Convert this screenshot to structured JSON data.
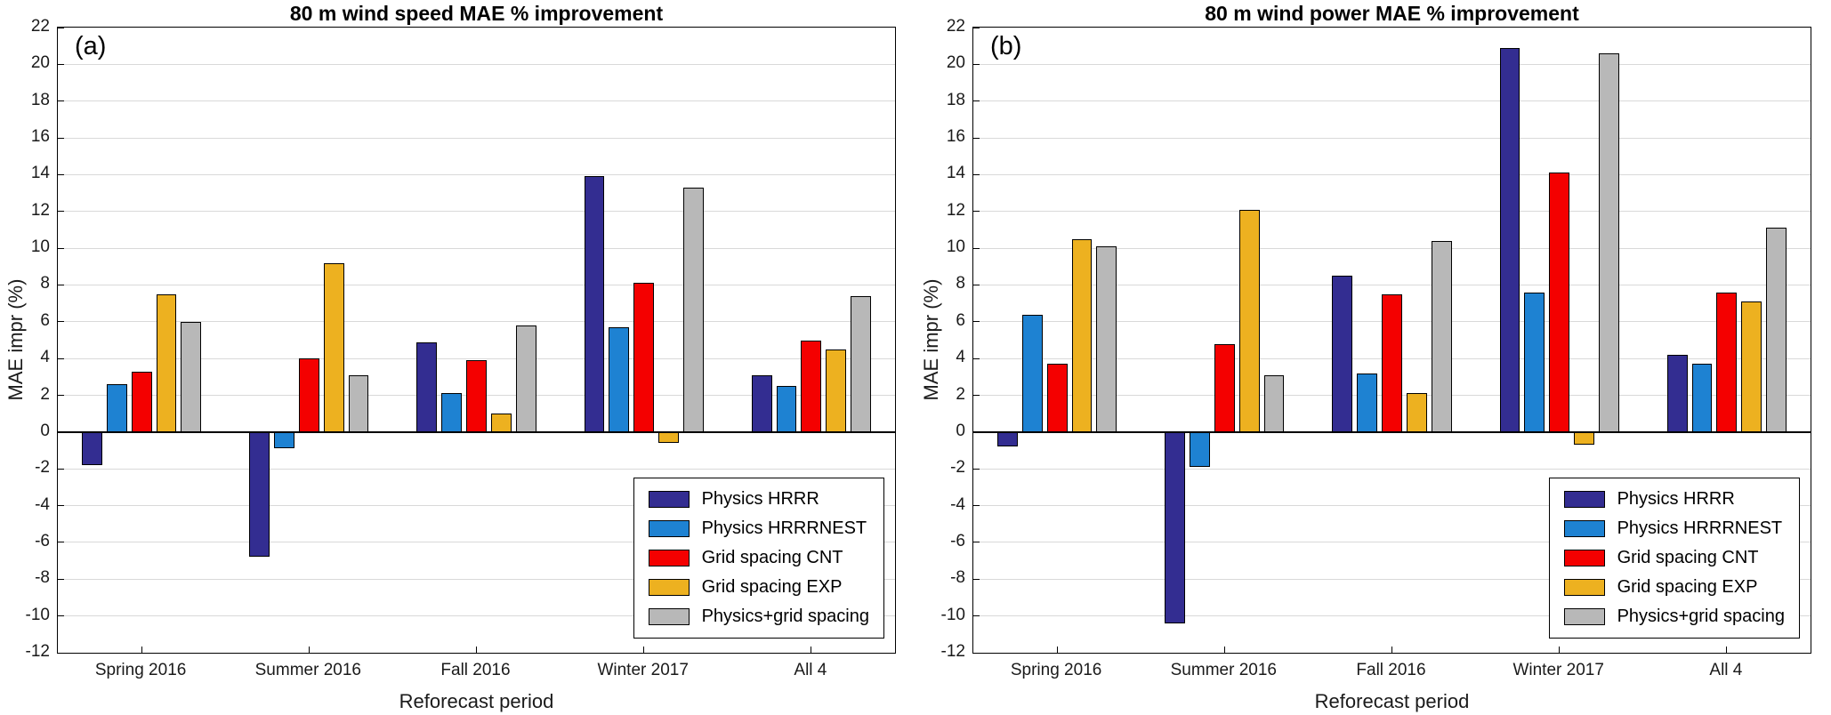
{
  "figure": {
    "background": "#ffffff",
    "gridline_color": "#d9d9d9",
    "axis_color": "#000000",
    "bar_border_color": "#000000"
  },
  "chart_data": [
    {
      "type": "bar",
      "panel_label": "(a)",
      "title": "80 m wind speed MAE % improvement",
      "xlabel": "Reforecast period",
      "ylabel": "MAE impr (%)",
      "ylim": [
        -12,
        22
      ],
      "ytick_step": 2,
      "grid": true,
      "legend_position": "lower right",
      "categories": [
        "Spring 2016",
        "Summer 2016",
        "Fall 2016",
        "Winter 2017",
        "All 4"
      ],
      "series": [
        {
          "name": "Physics HRRR",
          "color": "#332d91",
          "values": [
            -1.8,
            -6.8,
            4.9,
            13.9,
            3.1
          ]
        },
        {
          "name": "Physics HRRRNEST",
          "color": "#1e82d2",
          "values": [
            2.6,
            -0.9,
            2.1,
            5.7,
            2.5
          ]
        },
        {
          "name": "Grid spacing CNT",
          "color": "#f40000",
          "values": [
            3.3,
            4.0,
            3.9,
            8.1,
            5.0
          ]
        },
        {
          "name": "Grid spacing EXP",
          "color": "#edb120",
          "values": [
            7.5,
            9.2,
            1.0,
            -0.6,
            4.5
          ]
        },
        {
          "name": "Physics+grid spacing",
          "color": "#b8b8b8",
          "values": [
            6.0,
            3.1,
            5.8,
            13.3,
            7.4
          ]
        }
      ]
    },
    {
      "type": "bar",
      "panel_label": "(b)",
      "title": "80 m wind power MAE % improvement",
      "xlabel": "Reforecast period",
      "ylabel": "MAE impr (%)",
      "ylim": [
        -12,
        22
      ],
      "ytick_step": 2,
      "grid": true,
      "legend_position": "lower right",
      "categories": [
        "Spring 2016",
        "Summer 2016",
        "Fall 2016",
        "Winter 2017",
        "All 4"
      ],
      "series": [
        {
          "name": "Physics HRRR",
          "color": "#332d91",
          "values": [
            -0.8,
            -10.4,
            8.5,
            20.9,
            4.2
          ]
        },
        {
          "name": "Physics HRRRNEST",
          "color": "#1e82d2",
          "values": [
            6.4,
            -1.9,
            3.2,
            7.6,
            3.7
          ]
        },
        {
          "name": "Grid spacing CNT",
          "color": "#f40000",
          "values": [
            3.7,
            4.8,
            7.5,
            14.1,
            7.6
          ]
        },
        {
          "name": "Grid spacing EXP",
          "color": "#edb120",
          "values": [
            10.5,
            12.1,
            2.1,
            -0.7,
            7.1
          ]
        },
        {
          "name": "Physics+grid spacing",
          "color": "#b8b8b8",
          "values": [
            10.1,
            3.1,
            10.4,
            20.6,
            11.1
          ]
        }
      ]
    }
  ]
}
